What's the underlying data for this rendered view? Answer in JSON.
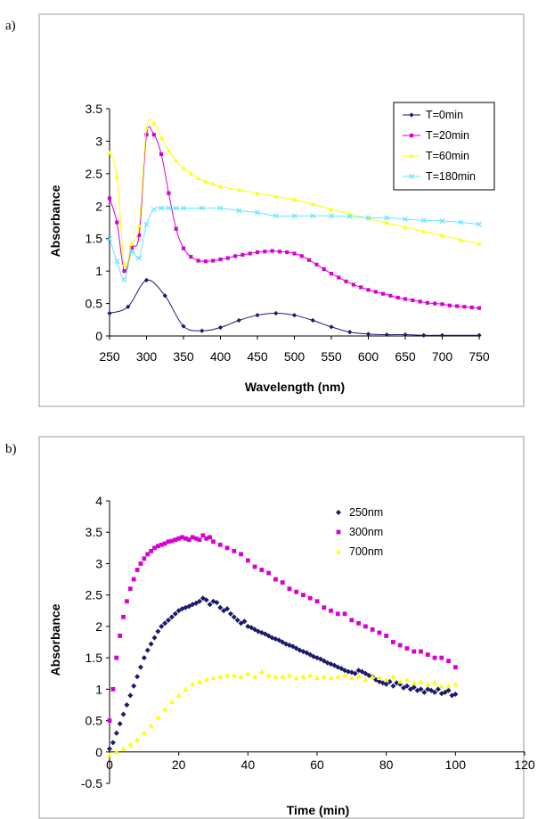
{
  "chart_data": [
    {
      "panel_label": "a)",
      "type": "line",
      "xlabel": "Wavelength (nm)",
      "ylabel": "Absorbance",
      "xlim": [
        250,
        750
      ],
      "ylim": [
        0,
        3.5
      ],
      "xticks": [
        "250",
        "300",
        "350",
        "400",
        "450",
        "500",
        "550",
        "600",
        "650",
        "700",
        "750"
      ],
      "yticks": [
        "0",
        "0.5",
        "1",
        "1.5",
        "2",
        "2.5",
        "3",
        "3.5"
      ],
      "grid": false,
      "legend_position": "top-right",
      "series": [
        {
          "name": "T=0min",
          "color": "#1a1a6e",
          "marker": "diamond",
          "x": [
            250,
            275,
            300,
            325,
            350,
            375,
            400,
            425,
            450,
            475,
            500,
            525,
            550,
            575,
            600,
            625,
            650,
            675,
            700,
            750
          ],
          "values": [
            0.35,
            0.45,
            0.86,
            0.62,
            0.15,
            0.08,
            0.13,
            0.24,
            0.32,
            0.35,
            0.32,
            0.24,
            0.14,
            0.06,
            0.03,
            0.02,
            0.02,
            0.01,
            0.01,
            0.01
          ]
        },
        {
          "name": "T=20min",
          "color": "#d400d4",
          "marker": "square",
          "x": [
            250,
            260,
            270,
            280,
            290,
            300,
            310,
            320,
            330,
            340,
            350,
            360,
            370,
            380,
            390,
            400,
            410,
            420,
            430,
            440,
            450,
            460,
            470,
            480,
            490,
            500,
            510,
            520,
            530,
            540,
            550,
            560,
            570,
            580,
            590,
            600,
            610,
            620,
            630,
            640,
            650,
            660,
            670,
            680,
            690,
            700,
            710,
            720,
            730,
            740,
            750
          ],
          "values": [
            2.12,
            1.75,
            1.0,
            1.36,
            1.55,
            3.1,
            3.1,
            2.8,
            2.2,
            1.65,
            1.35,
            1.22,
            1.16,
            1.15,
            1.16,
            1.18,
            1.2,
            1.23,
            1.25,
            1.27,
            1.29,
            1.3,
            1.31,
            1.3,
            1.29,
            1.27,
            1.23,
            1.17,
            1.1,
            1.03,
            0.96,
            0.9,
            0.84,
            0.79,
            0.75,
            0.71,
            0.68,
            0.65,
            0.62,
            0.59,
            0.57,
            0.55,
            0.53,
            0.51,
            0.5,
            0.49,
            0.47,
            0.46,
            0.45,
            0.44,
            0.43
          ]
        },
        {
          "name": "T=60min",
          "color": "#ffff00",
          "marker": "triangle",
          "x": [
            250,
            260,
            270,
            280,
            290,
            300,
            310,
            320,
            330,
            340,
            350,
            360,
            370,
            380,
            390,
            400,
            425,
            450,
            475,
            500,
            525,
            550,
            575,
            600,
            625,
            650,
            675,
            700,
            725,
            750
          ],
          "values": [
            2.82,
            2.45,
            1.1,
            1.42,
            1.7,
            3.2,
            3.27,
            3.05,
            2.85,
            2.7,
            2.58,
            2.5,
            2.43,
            2.38,
            2.34,
            2.3,
            2.25,
            2.2,
            2.15,
            2.1,
            2.03,
            1.95,
            1.88,
            1.81,
            1.74,
            1.68,
            1.61,
            1.55,
            1.48,
            1.42
          ]
        },
        {
          "name": "T=180min",
          "color": "#66e6ff",
          "marker": "x",
          "x": [
            250,
            260,
            270,
            280,
            290,
            300,
            310,
            320,
            330,
            340,
            350,
            375,
            400,
            425,
            450,
            475,
            500,
            525,
            550,
            575,
            600,
            625,
            650,
            675,
            700,
            725,
            750
          ],
          "values": [
            1.5,
            1.15,
            0.87,
            1.3,
            1.2,
            1.72,
            1.95,
            1.97,
            1.97,
            1.97,
            1.97,
            1.97,
            1.97,
            1.93,
            1.9,
            1.85,
            1.85,
            1.85,
            1.85,
            1.84,
            1.82,
            1.82,
            1.8,
            1.78,
            1.77,
            1.75,
            1.72
          ]
        }
      ]
    },
    {
      "panel_label": "b)",
      "type": "scatter",
      "xlabel": "Time (min)",
      "ylabel": "Absorbance",
      "xlim": [
        0,
        120
      ],
      "ylim": [
        -0.5,
        4
      ],
      "xticks": [
        "0",
        "20",
        "40",
        "60",
        "80",
        "100",
        "120"
      ],
      "yticks": [
        "-0.5",
        "0",
        "0.5",
        "1",
        "1.5",
        "2",
        "2.5",
        "3",
        "3.5",
        "4"
      ],
      "grid": false,
      "legend_position": "top-right",
      "series": [
        {
          "name": "250nm",
          "color": "#1a1a6e",
          "marker": "diamond",
          "x": [
            0,
            1,
            2,
            3,
            4,
            5,
            6,
            7,
            8,
            9,
            10,
            11,
            12,
            13,
            14,
            15,
            16,
            17,
            18,
            19,
            20,
            21,
            22,
            23,
            24,
            25,
            26,
            27,
            28,
            29,
            30,
            31,
            32,
            33,
            34,
            35,
            36,
            37,
            38,
            39,
            40,
            41,
            42,
            43,
            44,
            45,
            46,
            47,
            48,
            49,
            50,
            51,
            52,
            53,
            54,
            55,
            56,
            57,
            58,
            59,
            60,
            61,
            62,
            63,
            64,
            65,
            66,
            67,
            68,
            69,
            70,
            71,
            72,
            73,
            74,
            75,
            76,
            77,
            78,
            79,
            80,
            81,
            82,
            83,
            84,
            85,
            86,
            87,
            88,
            89,
            90,
            91,
            92,
            93,
            94,
            95,
            96,
            97,
            98,
            99,
            100
          ],
          "values": [
            0.05,
            0.15,
            0.3,
            0.45,
            0.6,
            0.75,
            0.9,
            1.05,
            1.2,
            1.35,
            1.5,
            1.62,
            1.72,
            1.82,
            1.92,
            2.0,
            2.05,
            2.1,
            2.15,
            2.2,
            2.25,
            2.28,
            2.3,
            2.32,
            2.35,
            2.37,
            2.4,
            2.45,
            2.42,
            2.35,
            2.4,
            2.38,
            2.3,
            2.25,
            2.28,
            2.2,
            2.15,
            2.1,
            2.05,
            2.08,
            2.0,
            1.98,
            1.95,
            1.92,
            1.9,
            1.88,
            1.85,
            1.82,
            1.8,
            1.78,
            1.75,
            1.72,
            1.7,
            1.68,
            1.65,
            1.62,
            1.6,
            1.58,
            1.55,
            1.52,
            1.5,
            1.48,
            1.45,
            1.42,
            1.4,
            1.38,
            1.35,
            1.33,
            1.3,
            1.28,
            1.27,
            1.25,
            1.3,
            1.28,
            1.25,
            1.22,
            1.2,
            1.15,
            1.12,
            1.1,
            1.08,
            1.12,
            1.05,
            1.1,
            1.08,
            1.02,
            1.05,
            1.0,
            1.03,
            0.98,
            1.0,
            0.95,
            1.0,
            0.98,
            0.95,
            1.0,
            0.93,
            0.95,
            0.98,
            0.9,
            0.92
          ]
        },
        {
          "name": "300nm",
          "color": "#d400d4",
          "marker": "square",
          "x": [
            0,
            1,
            2,
            3,
            4,
            5,
            6,
            7,
            8,
            9,
            10,
            11,
            12,
            13,
            14,
            15,
            16,
            17,
            18,
            19,
            20,
            21,
            22,
            23,
            24,
            25,
            26,
            27,
            28,
            29,
            30,
            32,
            34,
            36,
            38,
            40,
            42,
            44,
            46,
            48,
            50,
            52,
            54,
            56,
            58,
            60,
            62,
            64,
            66,
            68,
            70,
            72,
            74,
            76,
            78,
            80,
            82,
            84,
            86,
            88,
            90,
            92,
            94,
            96,
            98,
            100
          ],
          "values": [
            0.5,
            1.0,
            1.5,
            1.85,
            2.15,
            2.4,
            2.6,
            2.75,
            2.9,
            3.0,
            3.08,
            3.15,
            3.2,
            3.25,
            3.28,
            3.3,
            3.32,
            3.35,
            3.36,
            3.38,
            3.4,
            3.42,
            3.4,
            3.38,
            3.42,
            3.4,
            3.38,
            3.45,
            3.4,
            3.42,
            3.35,
            3.3,
            3.25,
            3.2,
            3.15,
            3.05,
            2.95,
            2.9,
            2.85,
            2.75,
            2.7,
            2.6,
            2.55,
            2.5,
            2.45,
            2.4,
            2.3,
            2.25,
            2.2,
            2.2,
            2.1,
            2.05,
            2.0,
            1.95,
            1.9,
            1.85,
            1.75,
            1.7,
            1.65,
            1.6,
            1.6,
            1.55,
            1.5,
            1.5,
            1.45,
            1.35
          ]
        },
        {
          "name": "700nm",
          "color": "#ffff00",
          "marker": "triangle",
          "x": [
            0,
            2,
            4,
            6,
            8,
            10,
            12,
            14,
            16,
            18,
            20,
            22,
            24,
            26,
            28,
            30,
            32,
            34,
            36,
            38,
            40,
            42,
            44,
            46,
            48,
            50,
            52,
            54,
            56,
            58,
            60,
            62,
            64,
            66,
            68,
            70,
            72,
            74,
            76,
            78,
            80,
            82,
            84,
            86,
            88,
            90,
            92,
            94,
            96,
            98,
            100
          ],
          "values": [
            -0.05,
            0.0,
            0.05,
            0.12,
            0.2,
            0.3,
            0.42,
            0.55,
            0.68,
            0.8,
            0.9,
            1.0,
            1.08,
            1.12,
            1.15,
            1.18,
            1.2,
            1.22,
            1.22,
            1.2,
            1.25,
            1.2,
            1.28,
            1.22,
            1.2,
            1.2,
            1.22,
            1.18,
            1.2,
            1.22,
            1.18,
            1.2,
            1.18,
            1.2,
            1.22,
            1.18,
            1.2,
            1.15,
            1.2,
            1.18,
            1.15,
            1.2,
            1.12,
            1.15,
            1.1,
            1.12,
            1.08,
            1.1,
            1.05,
            1.05,
            1.08
          ]
        }
      ]
    }
  ]
}
